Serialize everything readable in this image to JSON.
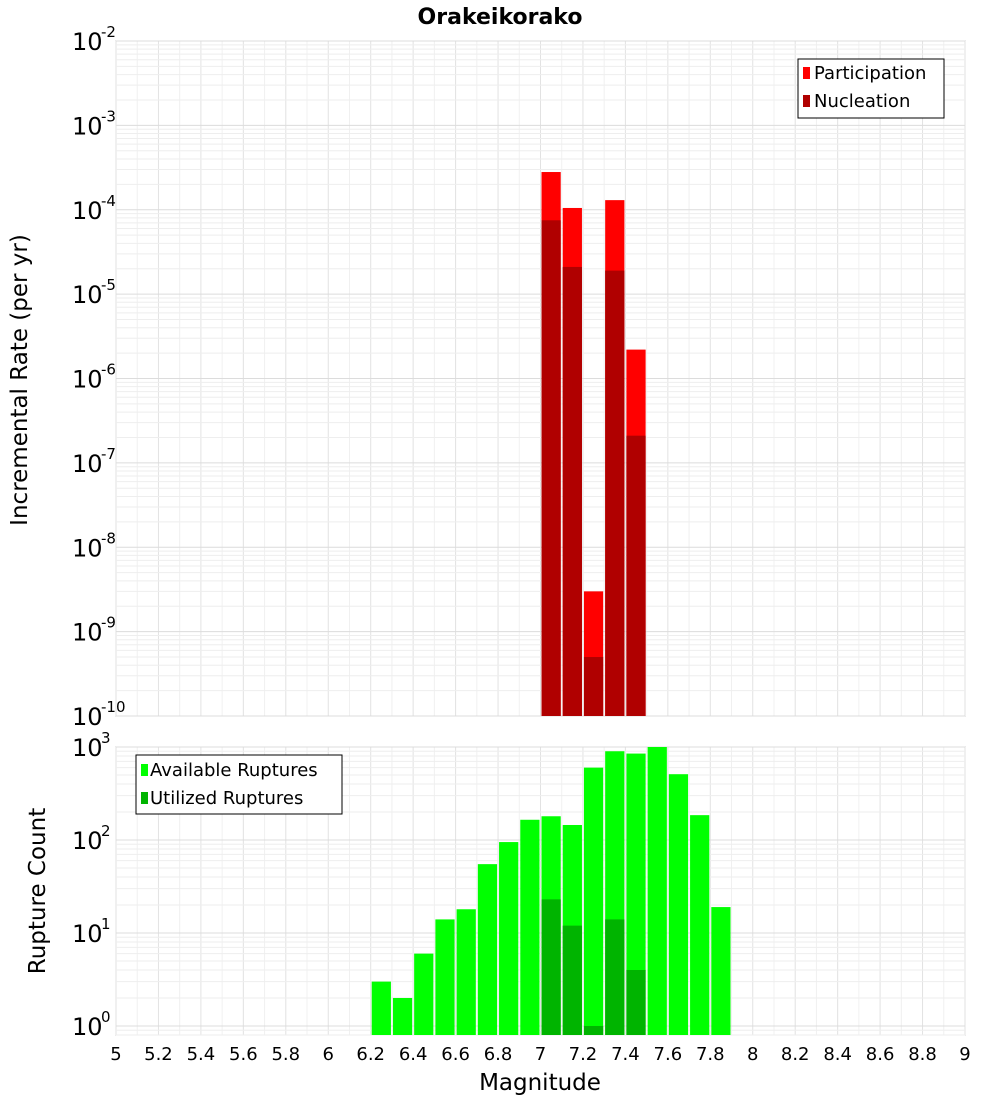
{
  "chart_data": {
    "type": "bar",
    "title": "Orakeikorako",
    "xlabel": "Magnitude",
    "xlim": [
      5,
      9
    ],
    "x_ticks": [
      "5",
      "5.2",
      "5.4",
      "5.6",
      "5.8",
      "6",
      "6.2",
      "6.4",
      "6.6",
      "6.8",
      "7",
      "7.2",
      "7.4",
      "7.6",
      "7.8",
      "8",
      "8.2",
      "8.4",
      "8.6",
      "8.8",
      "9"
    ],
    "bar_width": 0.1,
    "grid": true,
    "panels": [
      {
        "ylabel": "Incremental Rate (per yr)",
        "yscale": "log",
        "ylim": [
          1e-10,
          0.01
        ],
        "y_ticks": [
          {
            "base": "10",
            "exp": "-10"
          },
          {
            "base": "10",
            "exp": "-9"
          },
          {
            "base": "10",
            "exp": "-8"
          },
          {
            "base": "10",
            "exp": "-7"
          },
          {
            "base": "10",
            "exp": "-6"
          },
          {
            "base": "10",
            "exp": "-5"
          },
          {
            "base": "10",
            "exp": "-4"
          },
          {
            "base": "10",
            "exp": "-3"
          },
          {
            "base": "10",
            "exp": "-2"
          }
        ],
        "legend_position": "top-right",
        "x": [
          7.05,
          7.15,
          7.25,
          7.35,
          7.45
        ],
        "series": [
          {
            "name": "Participation",
            "color": "#ff0000",
            "values": [
              0.00028,
              0.000105,
              3e-09,
              0.00013,
              2.2e-06
            ]
          },
          {
            "name": "Nucleation",
            "color": "#b00000",
            "values": [
              7.5e-05,
              2.1e-05,
              5e-10,
              1.9e-05,
              2.1e-07
            ]
          }
        ]
      },
      {
        "ylabel": "Rupture Count",
        "yscale": "log",
        "ylim": [
          0.8,
          1000
        ],
        "y_ticks": [
          {
            "base": "10",
            "exp": "0"
          },
          {
            "base": "10",
            "exp": "1"
          },
          {
            "base": "10",
            "exp": "2"
          },
          {
            "base": "10",
            "exp": "3"
          }
        ],
        "legend_position": "top-left",
        "series": [
          {
            "name": "Available Ruptures",
            "color": "#00ff00",
            "x": [
              6.25,
              6.35,
              6.45,
              6.55,
              6.65,
              6.75,
              6.85,
              6.95,
              7.05,
              7.15,
              7.25,
              7.35,
              7.45,
              7.55,
              7.65,
              7.75,
              7.85
            ],
            "values": [
              3,
              2,
              6,
              14,
              18,
              55,
              95,
              165,
              180,
              145,
              600,
              900,
              850,
              1000,
              510,
              185,
              19
            ]
          },
          {
            "name": "Utilized Ruptures",
            "color": "#00b400",
            "x": [
              7.05,
              7.15,
              7.25,
              7.35,
              7.45
            ],
            "values": [
              23,
              12,
              1,
              14,
              4
            ]
          }
        ]
      }
    ]
  }
}
